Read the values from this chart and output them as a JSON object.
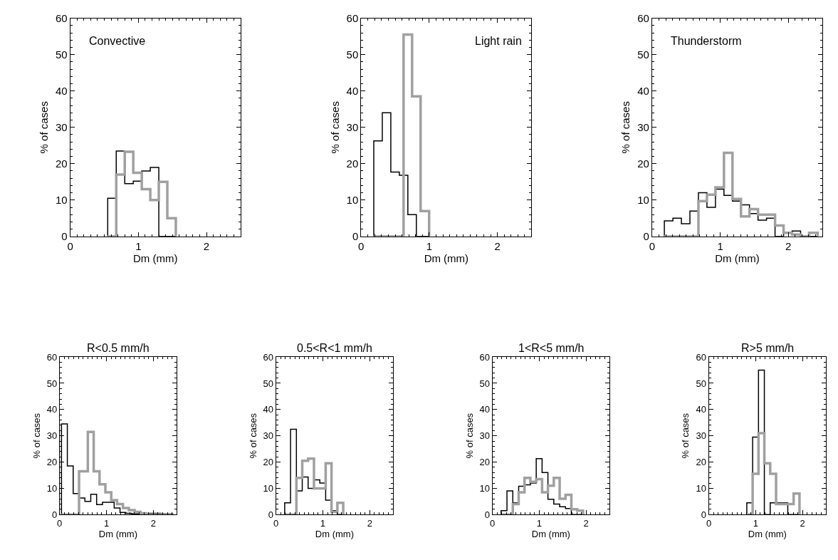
{
  "chart_data": [
    {
      "type": "histogram",
      "xlabel": "Dm (mm)",
      "ylabel": "% of cases",
      "annotations": [
        "Convective"
      ],
      "xlim": [
        0,
        2.5
      ],
      "xticks": [
        0,
        1,
        2
      ],
      "ylim": [
        0,
        60
      ],
      "yticks": [
        0,
        10,
        20,
        30,
        40,
        50,
        60
      ],
      "bins": [
        0.55,
        0.675,
        0.8,
        0.925,
        1.05,
        1.175,
        1.3,
        1.425,
        1.55
      ],
      "series": [
        {
          "color": "#000000",
          "values": [
            10.5,
            23.5,
            14.5,
            15.2,
            18,
            19,
            0,
            0
          ]
        },
        {
          "color": "#a0a0a0",
          "values": [
            0,
            17,
            23.3,
            17.5,
            13,
            10,
            15,
            5
          ]
        }
      ]
    },
    {
      "type": "histogram",
      "xlabel": "Dm (mm)",
      "ylabel": "% of cases",
      "annotations": [
        "Light rain"
      ],
      "xlim": [
        0,
        2.5
      ],
      "xticks": [
        0,
        1,
        2
      ],
      "ylim": [
        0,
        60
      ],
      "yticks": [
        0,
        10,
        20,
        30,
        40,
        50,
        60
      ],
      "bins": [
        0.185,
        0.31,
        0.435,
        0.56,
        0.6225,
        0.685,
        0.7475,
        0.81,
        0.8725,
        0.9975
      ],
      "series": [
        {
          "color": "#000000",
          "values": [
            26.3,
            34,
            17.7,
            16.8,
            16.8,
            6,
            6,
            0,
            0
          ]
        },
        {
          "color": "#a0a0a0",
          "values": [
            0,
            0,
            0,
            0,
            55.5,
            55.5,
            38.5,
            38.5,
            7
          ]
        }
      ]
    },
    {
      "type": "histogram",
      "xlabel": "Dm (mm)",
      "ylabel": "% of cases",
      "annotations": [
        "Thunderstorm"
      ],
      "xlim": [
        0,
        2.5
      ],
      "xticks": [
        0,
        1,
        2
      ],
      "ylim": [
        0,
        60
      ],
      "yticks": [
        0,
        10,
        20,
        30,
        40,
        50,
        60
      ],
      "bins": [
        0.18,
        0.305,
        0.43,
        0.555,
        0.68,
        0.805,
        0.93,
        1.055,
        1.18,
        1.305,
        1.43,
        1.555,
        1.68,
        1.805,
        1.93,
        2.055,
        2.18,
        2.305,
        2.43
      ],
      "series": [
        {
          "color": "#000000",
          "values": [
            4.3,
            5,
            3.5,
            7,
            12,
            8,
            13,
            11.3,
            9.7,
            8.7,
            6.3,
            4.5,
            5,
            0,
            1,
            1.5,
            0,
            0
          ]
        },
        {
          "color": "#a0a0a0",
          "values": [
            0,
            0,
            0,
            0,
            9.7,
            11.5,
            13.5,
            23,
            10.3,
            5.5,
            7.5,
            6,
            6,
            3,
            1,
            0.5,
            0,
            1
          ]
        }
      ]
    },
    {
      "type": "histogram",
      "title": "R<0.5 mm/h",
      "xlabel": "Dm (mm)",
      "ylabel": "% of cases",
      "xlim": [
        0,
        2.5
      ],
      "xticks": [
        0,
        1,
        2
      ],
      "ylim": [
        0,
        60
      ],
      "yticks": [
        0,
        10,
        20,
        30,
        40,
        50,
        60
      ],
      "bins": [
        0.04,
        0.165,
        0.29,
        0.415,
        0.54,
        0.6025,
        0.665,
        0.7275,
        0.79,
        0.8525,
        0.915,
        0.9775,
        1.04,
        1.1025,
        1.165,
        1.2275,
        1.29,
        1.3525,
        1.415,
        1.4775,
        1.54,
        1.6025,
        1.665,
        1.7275,
        1.79,
        1.8525,
        1.915,
        2.04,
        2.165,
        2.29,
        2.415
      ],
      "series": [
        {
          "color": "#000000",
          "values": [
            34.5,
            18.5,
            8,
            6.3,
            5,
            5,
            7.7,
            7.7,
            3.8,
            3.8,
            4.7,
            4.7,
            4.7,
            4.7,
            2.5,
            2.5,
            0.8,
            0.8,
            0.5,
            0.5,
            0.3,
            0.3,
            0.3,
            0.3,
            0.3,
            0.3,
            0.5,
            0.5,
            0.3,
            0.3
          ]
        },
        {
          "color": "#a0a0a0",
          "values": [
            0,
            0,
            0,
            16.5,
            16.5,
            31.5,
            31.5,
            16.5,
            16.5,
            11.5,
            11.5,
            8.5,
            8.5,
            5.5,
            5.5,
            4,
            4,
            2.5,
            2.5,
            1.7,
            1.7,
            1,
            1,
            0.5,
            0.5,
            0,
            0,
            0,
            0,
            0
          ]
        }
      ]
    },
    {
      "type": "histogram",
      "title": "0.5<R<1 mm/h",
      "xlabel": "Dm (mm)",
      "ylabel": "% of cases",
      "xlim": [
        0,
        2.5
      ],
      "xticks": [
        0,
        1,
        2
      ],
      "ylim": [
        0,
        60
      ],
      "yticks": [
        0,
        10,
        20,
        30,
        40,
        50,
        60
      ],
      "bins": [
        0.185,
        0.31,
        0.435,
        0.56,
        0.685,
        0.81,
        0.935,
        1.06,
        1.185,
        1.31,
        1.435
      ],
      "series": [
        {
          "color": "#000000",
          "values": [
            4.5,
            32.5,
            9,
            14.3,
            10,
            13.2,
            12,
            5.5,
            1.5,
            0
          ]
        },
        {
          "color": "#a0a0a0",
          "values": [
            0,
            0,
            14,
            20.5,
            21.3,
            10,
            10,
            19.5,
            1,
            4.5
          ]
        }
      ]
    },
    {
      "type": "histogram",
      "title": "1<R<5 mm/h",
      "xlabel": "Dm (mm)",
      "ylabel": "% of cases",
      "xlim": [
        0,
        2.5
      ],
      "xticks": [
        0,
        1,
        2
      ],
      "ylim": [
        0,
        60
      ],
      "yticks": [
        0,
        10,
        20,
        30,
        40,
        50,
        60
      ],
      "bins": [
        0.185,
        0.31,
        0.435,
        0.56,
        0.685,
        0.81,
        0.935,
        1.06,
        1.185,
        1.31,
        1.435,
        1.56,
        1.685,
        1.81,
        1.935
      ],
      "series": [
        {
          "color": "#000000",
          "values": [
            1.5,
            9,
            4.5,
            10.8,
            11.3,
            12,
            21.3,
            16,
            5.8,
            4,
            3,
            2.3,
            0,
            0
          ]
        },
        {
          "color": "#a0a0a0",
          "values": [
            0,
            0,
            4,
            8.5,
            14,
            12.5,
            13.5,
            8.5,
            11,
            14,
            6,
            7.5,
            2,
            1.5
          ]
        }
      ]
    },
    {
      "type": "histogram",
      "title": "R>5 mm/h",
      "xlabel": "Dm (mm)",
      "ylabel": "% of cases",
      "xlim": [
        0,
        2.5
      ],
      "xticks": [
        0,
        1,
        2
      ],
      "ylim": [
        0,
        60
      ],
      "yticks": [
        0,
        10,
        20,
        30,
        40,
        50,
        60
      ],
      "bins": [
        0.81,
        0.935,
        1.06,
        1.185,
        1.31,
        1.435,
        1.56,
        1.685,
        1.81,
        1.935
      ],
      "series": [
        {
          "color": "#000000",
          "values": [
            4.5,
            29.5,
            55,
            0,
            4.5,
            4.5,
            4.5,
            0,
            0
          ]
        },
        {
          "color": "#a0a0a0",
          "values": [
            0,
            15.5,
            31,
            19.5,
            15.5,
            4,
            4,
            4,
            8
          ]
        }
      ]
    }
  ]
}
